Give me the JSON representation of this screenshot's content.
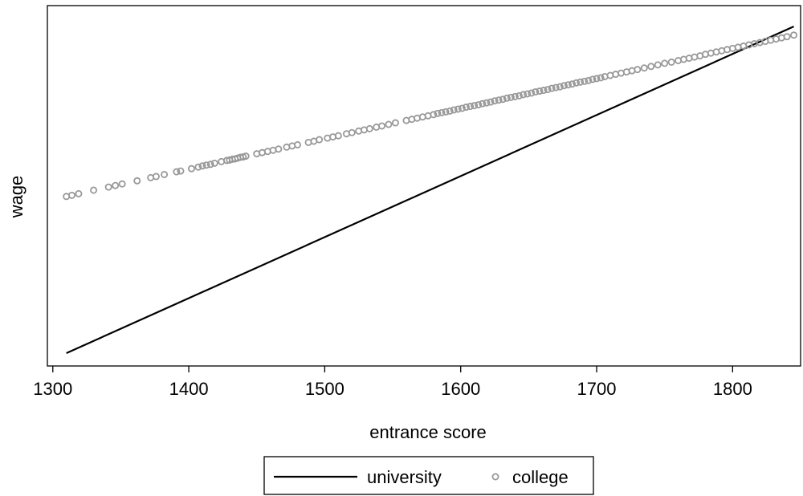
{
  "chart_data": {
    "type": "line",
    "title": "",
    "xlabel": "entrance score",
    "ylabel": "wage",
    "xlim": [
      1296,
      1850
    ],
    "x_ticks": [
      1300,
      1400,
      1500,
      1600,
      1700,
      1800
    ],
    "y_ticks_shown": false,
    "grid": false,
    "legend_position": "bottom",
    "series": [
      {
        "name": "university",
        "style": "line",
        "color": "#000000",
        "x": [
          1310,
          1845
        ],
        "y": [
          1.0,
          9.34
        ]
      },
      {
        "name": "college",
        "style": "scatter",
        "marker": "hollow-circle",
        "color": "#999999",
        "x": [
          1310,
          1314,
          1319,
          1330,
          1341,
          1346,
          1351,
          1362,
          1372,
          1376,
          1382,
          1391,
          1394,
          1402,
          1407,
          1410,
          1413,
          1416,
          1419,
          1424,
          1428,
          1430,
          1432,
          1434,
          1436,
          1438,
          1440,
          1442,
          1450,
          1454,
          1458,
          1462,
          1466,
          1472,
          1476,
          1480,
          1488,
          1492,
          1496,
          1502,
          1506,
          1510,
          1516,
          1520,
          1525,
          1529,
          1533,
          1538,
          1542,
          1547,
          1552,
          1560,
          1564,
          1568,
          1572,
          1576,
          1580,
          1583,
          1586,
          1589,
          1592,
          1595,
          1598,
          1601,
          1604,
          1607,
          1610,
          1613,
          1616,
          1619,
          1622,
          1625,
          1628,
          1631,
          1634,
          1637,
          1640,
          1643,
          1646,
          1649,
          1652,
          1655,
          1658,
          1661,
          1664,
          1667,
          1670,
          1673,
          1676,
          1679,
          1682,
          1685,
          1688,
          1691,
          1694,
          1697,
          1700,
          1703,
          1706,
          1710,
          1714,
          1718,
          1722,
          1726,
          1730,
          1735,
          1740,
          1745,
          1750,
          1755,
          1760,
          1764,
          1768,
          1772,
          1776,
          1780,
          1784,
          1788,
          1792,
          1796,
          1800,
          1804,
          1808,
          1812,
          1816,
          1820,
          1824,
          1828,
          1832,
          1836,
          1840,
          1845
        ],
        "y": [
          5.0,
          5.03,
          5.07,
          5.16,
          5.24,
          5.28,
          5.32,
          5.4,
          5.48,
          5.51,
          5.56,
          5.63,
          5.65,
          5.71,
          5.75,
          5.78,
          5.8,
          5.82,
          5.85,
          5.89,
          5.92,
          5.93,
          5.95,
          5.96,
          5.98,
          6.0,
          6.01,
          6.03,
          6.09,
          6.12,
          6.15,
          6.18,
          6.21,
          6.26,
          6.29,
          6.32,
          6.38,
          6.41,
          6.45,
          6.49,
          6.52,
          6.55,
          6.6,
          6.63,
          6.67,
          6.7,
          6.73,
          6.77,
          6.8,
          6.84,
          6.88,
          6.94,
          6.97,
          7.0,
          7.03,
          7.06,
          7.09,
          7.12,
          7.14,
          7.16,
          7.18,
          7.21,
          7.23,
          7.25,
          7.28,
          7.3,
          7.32,
          7.34,
          7.37,
          7.39,
          7.41,
          7.44,
          7.46,
          7.48,
          7.51,
          7.53,
          7.55,
          7.57,
          7.6,
          7.62,
          7.64,
          7.67,
          7.69,
          7.71,
          7.73,
          7.76,
          7.78,
          7.8,
          7.83,
          7.85,
          7.87,
          7.9,
          7.92,
          7.94,
          7.96,
          7.99,
          8.01,
          8.03,
          8.06,
          8.09,
          8.12,
          8.15,
          8.18,
          8.21,
          8.24,
          8.28,
          8.32,
          8.36,
          8.4,
          8.43,
          8.47,
          8.5,
          8.53,
          8.56,
          8.59,
          8.63,
          8.66,
          8.69,
          8.72,
          8.75,
          8.78,
          8.81,
          8.84,
          8.87,
          8.9,
          8.93,
          8.96,
          8.99,
          9.02,
          9.05,
          9.08,
          9.12
        ]
      }
    ]
  },
  "legend": {
    "items": [
      {
        "label": "university"
      },
      {
        "label": "college"
      }
    ]
  }
}
